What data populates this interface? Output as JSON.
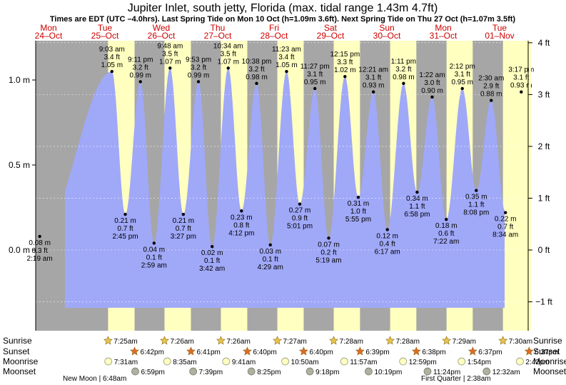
{
  "chart_data": {
    "type": "area",
    "title": "Jupiter Inlet, south jetty, Florida (max. tidal range 1.43m 4.7ft)",
    "subtitle": "Times are EDT (UTC –4.0hrs). Last Spring Tide on Mon 10 Oct (h=1.09m 3.6ft). Next Spring Tide on Thu 27 Oct (h=1.07m 3.5ft)",
    "y_left_label_unit": "m",
    "y_left_ticks": [
      "1.0 m",
      "0.5 m",
      "0.0 m"
    ],
    "y_right_ticks": [
      "4 ft",
      "3 ft",
      "2 ft",
      "1 ft",
      "0 ft",
      "−1 ft"
    ],
    "ylim_m": [
      -0.35,
      1.22
    ],
    "colors": {
      "water": "#a0a8f8",
      "night": "#a6a6a6",
      "day": "#ffffc0",
      "sun": "#e8c44a",
      "sunset": "#e06a28",
      "moon": "#ffffc0",
      "moonset": "#b0b0a0"
    },
    "days": [
      {
        "dow": "Mon",
        "date": "24–Oct"
      },
      {
        "dow": "Tue",
        "date": "25–Oct"
      },
      {
        "dow": "Wed",
        "date": "26–Oct"
      },
      {
        "dow": "Thu",
        "date": "27–Oct"
      },
      {
        "dow": "Fri",
        "date": "28–Oct"
      },
      {
        "dow": "Sat",
        "date": "29–Oct"
      },
      {
        "dow": "Sun",
        "date": "30–Oct"
      },
      {
        "dow": "Mon",
        "date": "31–Oct"
      },
      {
        "dow": "Tue",
        "date": "01–Nov"
      }
    ],
    "tides": [
      {
        "day": 0,
        "hour": 2.317,
        "m": 0.08,
        "type": "low",
        "time": "2:19 am",
        "ft": "0.3 ft",
        "mlabel": "0.08 m"
      },
      {
        "day": 1,
        "hour": 9.05,
        "m": 1.05,
        "type": "high",
        "time": "9:03 am",
        "ft": "3.4 ft",
        "mlabel": "1.05 m"
      },
      {
        "day": 1,
        "hour": 14.75,
        "m": 0.21,
        "type": "low",
        "time": "2:45 pm",
        "ft": "0.7 ft",
        "mlabel": "0.21 m"
      },
      {
        "day": 1,
        "hour": 21.183,
        "m": 0.99,
        "type": "high",
        "time": "9:11 pm",
        "ft": "3.2 ft",
        "mlabel": "0.99 m"
      },
      {
        "day": 2,
        "hour": 2.983,
        "m": 0.04,
        "type": "low",
        "time": "2:59 am",
        "ft": "0.1 ft",
        "mlabel": "0.04 m"
      },
      {
        "day": 2,
        "hour": 9.8,
        "m": 1.07,
        "type": "high",
        "time": "9:48 am",
        "ft": "3.5 ft",
        "mlabel": "1.07 m"
      },
      {
        "day": 2,
        "hour": 15.45,
        "m": 0.21,
        "type": "low",
        "time": "3:27 pm",
        "ft": "0.7 ft",
        "mlabel": "0.21 m"
      },
      {
        "day": 2,
        "hour": 21.883,
        "m": 0.99,
        "type": "high",
        "time": "9:53 pm",
        "ft": "3.2 ft",
        "mlabel": "0.99 m"
      },
      {
        "day": 3,
        "hour": 3.7,
        "m": 0.02,
        "type": "low",
        "time": "3:42 am",
        "ft": "0.1 ft",
        "mlabel": "0.02 m"
      },
      {
        "day": 3,
        "hour": 10.567,
        "m": 1.07,
        "type": "high",
        "time": "10:34 am",
        "ft": "3.5 ft",
        "mlabel": "1.07 m"
      },
      {
        "day": 3,
        "hour": 16.2,
        "m": 0.23,
        "type": "low",
        "time": "4:12 pm",
        "ft": "0.8 ft",
        "mlabel": "0.23 m"
      },
      {
        "day": 3,
        "hour": 22.633,
        "m": 0.98,
        "type": "high",
        "time": "10:38 pm",
        "ft": "3.2 ft",
        "mlabel": "0.98 m"
      },
      {
        "day": 4,
        "hour": 4.483,
        "m": 0.03,
        "type": "low",
        "time": "4:29 am",
        "ft": "0.1 ft",
        "mlabel": "0.03 m"
      },
      {
        "day": 4,
        "hour": 11.383,
        "m": 1.05,
        "type": "high",
        "time": "11:23 am",
        "ft": "3.4 ft",
        "mlabel": "1.05 m"
      },
      {
        "day": 4,
        "hour": 17.017,
        "m": 0.27,
        "type": "low",
        "time": "5:01 pm",
        "ft": "0.9 ft",
        "mlabel": "0.27 m"
      },
      {
        "day": 4,
        "hour": 23.45,
        "m": 0.95,
        "type": "high",
        "time": "11:27 pm",
        "ft": "3.1 ft",
        "mlabel": "0.95 m"
      },
      {
        "day": 5,
        "hour": 5.317,
        "m": 0.07,
        "type": "low",
        "time": "5:19 am",
        "ft": "0.2 ft",
        "mlabel": "0.07 m"
      },
      {
        "day": 5,
        "hour": 12.25,
        "m": 1.02,
        "type": "high",
        "time": "12:15 pm",
        "ft": "3.3 ft",
        "mlabel": "1.02 m"
      },
      {
        "day": 5,
        "hour": 17.917,
        "m": 0.31,
        "type": "low",
        "time": "5:55 pm",
        "ft": "1.0 ft",
        "mlabel": "0.31 m"
      },
      {
        "day": 6,
        "hour": 0.35,
        "m": 0.93,
        "type": "high",
        "time": "12:21 am",
        "ft": "3.1 ft",
        "mlabel": "0.93 m"
      },
      {
        "day": 6,
        "hour": 6.283,
        "m": 0.12,
        "type": "low",
        "time": "6:17 am",
        "ft": "0.4 ft",
        "mlabel": "0.12 m"
      },
      {
        "day": 6,
        "hour": 13.183,
        "m": 0.98,
        "type": "high",
        "time": "1:11 pm",
        "ft": "3.2 ft",
        "mlabel": "0.98 m"
      },
      {
        "day": 6,
        "hour": 18.967,
        "m": 0.34,
        "type": "low",
        "time": "6:58 pm",
        "ft": "1.1 ft",
        "mlabel": "0.34 m"
      },
      {
        "day": 7,
        "hour": 1.367,
        "m": 0.9,
        "type": "high",
        "time": "1:22 am",
        "ft": "3.0 ft",
        "mlabel": "0.90 m"
      },
      {
        "day": 7,
        "hour": 7.367,
        "m": 0.18,
        "type": "low",
        "time": "7:22 am",
        "ft": "0.6 ft",
        "mlabel": "0.18 m"
      },
      {
        "day": 7,
        "hour": 14.2,
        "m": 0.95,
        "type": "high",
        "time": "2:12 pm",
        "ft": "3.1 ft",
        "mlabel": "0.95 m"
      },
      {
        "day": 7,
        "hour": 20.133,
        "m": 0.35,
        "type": "low",
        "time": "8:08 pm",
        "ft": "1.1 ft",
        "mlabel": "0.35 m"
      },
      {
        "day": 8,
        "hour": 2.5,
        "m": 0.88,
        "type": "high",
        "time": "2:30 am",
        "ft": "2.9 ft",
        "mlabel": "0.88 m"
      },
      {
        "day": 8,
        "hour": 8.567,
        "m": 0.22,
        "type": "low",
        "time": "8:34 am",
        "ft": "0.7 ft",
        "mlabel": "0.22 m"
      },
      {
        "day": 8,
        "hour": 15.283,
        "m": 0.93,
        "type": "high",
        "time": "3:17 pm",
        "ft": "3.1 ft",
        "mlabel": "0.93 m"
      }
    ],
    "rows": {
      "sunrise_label": "Sunrise",
      "sunset_label": "Sunset",
      "moonrise_label": "Moonrise",
      "moonset_label": "Moonset"
    },
    "sun_events": [
      {
        "day": 1,
        "rise": "7:25am",
        "rise_h": 7.417,
        "set": "6:42pm",
        "set_h": 18.7
      },
      {
        "day": 2,
        "rise": "7:26am",
        "rise_h": 7.433,
        "set": "6:41pm",
        "set_h": 18.683
      },
      {
        "day": 3,
        "rise": "7:26am",
        "rise_h": 7.433,
        "set": "6:40pm",
        "set_h": 18.667
      },
      {
        "day": 4,
        "rise": "7:27am",
        "rise_h": 7.45,
        "set": "6:40pm",
        "set_h": 18.667
      },
      {
        "day": 5,
        "rise": "7:28am",
        "rise_h": 7.467,
        "set": "6:39pm",
        "set_h": 18.65
      },
      {
        "day": 6,
        "rise": "7:28am",
        "rise_h": 7.467,
        "set": "6:38pm",
        "set_h": 18.633
      },
      {
        "day": 7,
        "rise": "7:29am",
        "rise_h": 7.483,
        "set": "6:37pm",
        "set_h": 18.617
      },
      {
        "day": 8,
        "rise": "7:30am",
        "rise_h": 7.5,
        "set": "6:37pm",
        "set_h": 18.617
      }
    ],
    "moonrise": [
      {
        "day": 1,
        "time": "7:31am",
        "h": 7.517
      },
      {
        "day": 2,
        "time": "8:35am",
        "h": 8.583
      },
      {
        "day": 3,
        "time": "9:41am",
        "h": 9.683
      },
      {
        "day": 4,
        "time": "10:50am",
        "h": 10.833
      },
      {
        "day": 5,
        "time": "11:57am",
        "h": 11.95
      },
      {
        "day": 6,
        "time": "12:59pm",
        "h": 12.983
      },
      {
        "day": 7,
        "time": "1:54pm",
        "h": 13.9
      },
      {
        "day": 8,
        "time": "2:42pm",
        "h": 14.7
      }
    ],
    "moonset": [
      {
        "day": 1,
        "time": "6:59pm",
        "h": 18.983
      },
      {
        "day": 2,
        "time": "7:39pm",
        "h": 19.65
      },
      {
        "day": 3,
        "time": "8:25pm",
        "h": 20.417
      },
      {
        "day": 4,
        "time": "9:18pm",
        "h": 21.3
      },
      {
        "day": 5,
        "time": "10:19pm",
        "h": 22.317
      },
      {
        "day": 6,
        "time": "11:24pm",
        "h": 23.4
      },
      {
        "day": 8,
        "time": "12:32am",
        "h": 0.533
      }
    ],
    "moon_phases": [
      {
        "label": "New Moon",
        "time": "6:48am"
      },
      {
        "label": "First Quarter",
        "time": "2:38am"
      }
    ]
  }
}
